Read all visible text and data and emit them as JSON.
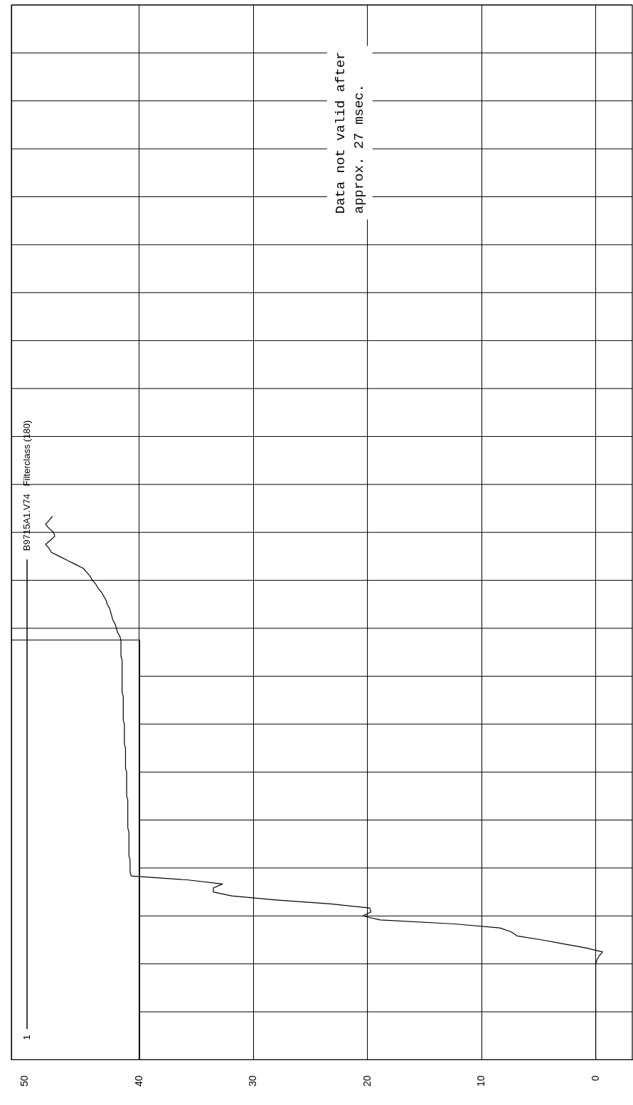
{
  "chart_data": {
    "type": "line",
    "orientation": "horizontal",
    "categories": [
      null,
      null,
      null,
      null,
      null,
      null,
      null,
      null,
      null,
      null,
      null,
      null,
      null,
      null,
      null,
      null,
      null,
      null,
      null,
      null,
      null,
      null,
      null,
      null,
      null,
      null,
      null,
      null,
      null,
      null,
      null,
      null,
      null,
      null,
      null,
      null,
      null,
      null,
      null,
      null,
      null,
      null,
      null,
      null,
      null,
      null,
      null,
      null,
      null,
      null,
      null,
      null,
      null,
      null,
      null,
      null,
      null,
      null,
      null,
      null,
      null,
      null,
      null,
      null,
      null,
      null,
      null,
      null,
      null,
      null,
      null,
      null,
      null,
      null,
      null,
      null,
      null,
      null,
      null,
      null,
      null,
      null,
      null,
      null,
      null,
      null,
      null,
      null,
      null,
      null,
      null,
      null,
      null,
      null,
      null,
      null,
      null,
      null,
      null,
      null,
      null,
      null,
      null,
      null,
      null,
      null,
      null,
      null,
      null,
      null,
      null,
      null,
      null,
      null,
      null,
      null,
      null,
      null,
      null,
      null,
      null,
      null,
      null,
      null,
      null,
      null,
      null,
      null,
      null,
      null,
      null,
      null,
      null,
      null,
      null,
      null,
      null,
      null,
      null,
      null,
      null,
      null,
      null,
      null,
      null,
      null,
      null,
      null,
      null,
      null,
      null,
      null,
      null,
      null,
      null,
      null,
      null,
      null,
      null,
      null,
      null,
      null,
      null,
      null,
      null,
      null,
      null,
      null,
      null,
      null,
      null,
      null,
      null,
      null,
      null,
      null,
      null,
      null,
      null,
      null,
      null,
      null,
      null,
      null,
      null,
      null,
      null,
      null,
      null,
      null,
      null,
      null,
      null,
      null,
      null,
      null,
      null,
      null,
      null,
      null,
      null,
      null,
      null,
      null,
      null,
      null,
      null,
      null,
      null,
      null,
      null,
      null,
      null,
      null,
      null,
      null,
      null,
      null,
      null,
      null,
      null,
      null,
      null,
      null,
      null,
      null,
      null,
      null,
      null,
      null,
      null,
      null,
      null,
      null,
      null,
      null,
      null,
      null,
      null,
      null,
      null,
      null,
      null,
      null,
      null,
      null,
      null,
      null,
      null,
      null,
      null,
      null,
      null,
      null,
      null,
      null,
      null,
      null,
      null,
      null,
      null,
      null,
      null,
      null,
      null
    ],
    "series": [
      {
        "name": "B9715A1.V74   Filterclass (180)",
        "color": "#000000",
        "values": [
          null,
          null,
          null,
          null,
          null,
          null,
          null,
          null,
          null,
          null,
          null,
          null,
          null,
          null,
          null,
          null,
          null,
          null,
          null,
          null,
          null,
          null,
          null,
          null,
          null,
          null,
          null,
          null,
          null,
          null,
          null,
          null,
          null,
          null,
          null,
          null,
          null,
          null,
          null,
          null,
          null,
          null,
          null,
          null,
          null,
          null,
          null,
          null,
          null,
          null,
          null,
          null,
          null,
          null,
          null,
          null,
          null,
          null,
          null,
          null,
          null,
          null,
          null,
          null,
          null,
          null,
          null,
          null,
          null,
          null,
          null,
          null,
          null,
          null,
          null,
          null,
          null,
          null,
          null,
          null,
          null,
          null,
          null,
          null,
          null,
          null,
          null,
          null,
          null,
          null,
          null,
          null,
          null,
          null,
          null,
          null,
          null,
          null,
          null,
          null,
          null,
          null,
          null,
          null,
          null,
          null,
          null,
          null,
          null,
          null,
          null,
          null,
          null,
          null,
          null,
          null,
          null,
          null,
          null,
          null,
          null,
          null,
          null,
          null,
          null,
          null,
          null,
          null,
          47.6,
          47.9,
          48.2,
          47.9,
          47.5,
          47.4,
          47.8,
          48.2,
          47.9,
          47.7,
          47.0,
          46.3,
          45.6,
          44.9,
          44.6,
          44.3,
          44.1,
          43.8,
          43.6,
          43.3,
          43.1,
          42.9,
          42.8,
          42.6,
          42.5,
          42.4,
          42.3,
          42.1,
          42.0,
          41.9,
          41.7,
          41.6,
          41.6,
          41.6,
          41.6,
          41.6,
          41.5,
          41.5,
          41.5,
          41.5,
          41.5,
          41.5,
          41.5,
          41.5,
          41.5,
          41.4,
          41.4,
          41.4,
          41.4,
          41.4,
          41.4,
          41.4,
          41.3,
          41.3,
          41.3,
          41.3,
          41.3,
          41.3,
          41.2,
          41.2,
          41.2,
          41.2,
          41.2,
          41.2,
          41.1,
          41.1,
          41.1,
          41.1,
          41.1,
          41.1,
          41.1,
          41.0,
          41.0,
          41.0,
          41.0,
          41.0,
          41.0,
          41.0,
          41.0,
          40.9,
          40.9,
          40.9,
          40.9,
          40.9,
          40.9,
          40.9,
          40.8,
          40.8,
          40.8,
          40.8,
          40.7,
          35.7,
          32.7,
          33.5,
          33.5,
          31.9,
          28.0,
          23.2,
          19.8,
          19.7,
          20.4,
          18.9,
          12.4,
          8.4,
          7.4,
          6.9,
          4.7,
          2.8,
          0.9,
          -0.6,
          -0.3,
          -0.1,
          0,
          0,
          0,
          0,
          0,
          0,
          0,
          0,
          0,
          0,
          0,
          0,
          0,
          0,
          0,
          0,
          0,
          0,
          0,
          0,
          0,
          0,
          0,
          0,
          0
        ]
      }
    ],
    "xlim": [
      51.2,
      -3.2
    ],
    "xticks": [
      50,
      40,
      30,
      20,
      10,
      0
    ],
    "tick_labels": "x",
    "grid": true,
    "legend": "left",
    "legend_title": "1",
    "line_style": "solid",
    "marker": "none",
    "annotations": [
      "Data not valid after approx. 27 msec."
    ]
  }
}
